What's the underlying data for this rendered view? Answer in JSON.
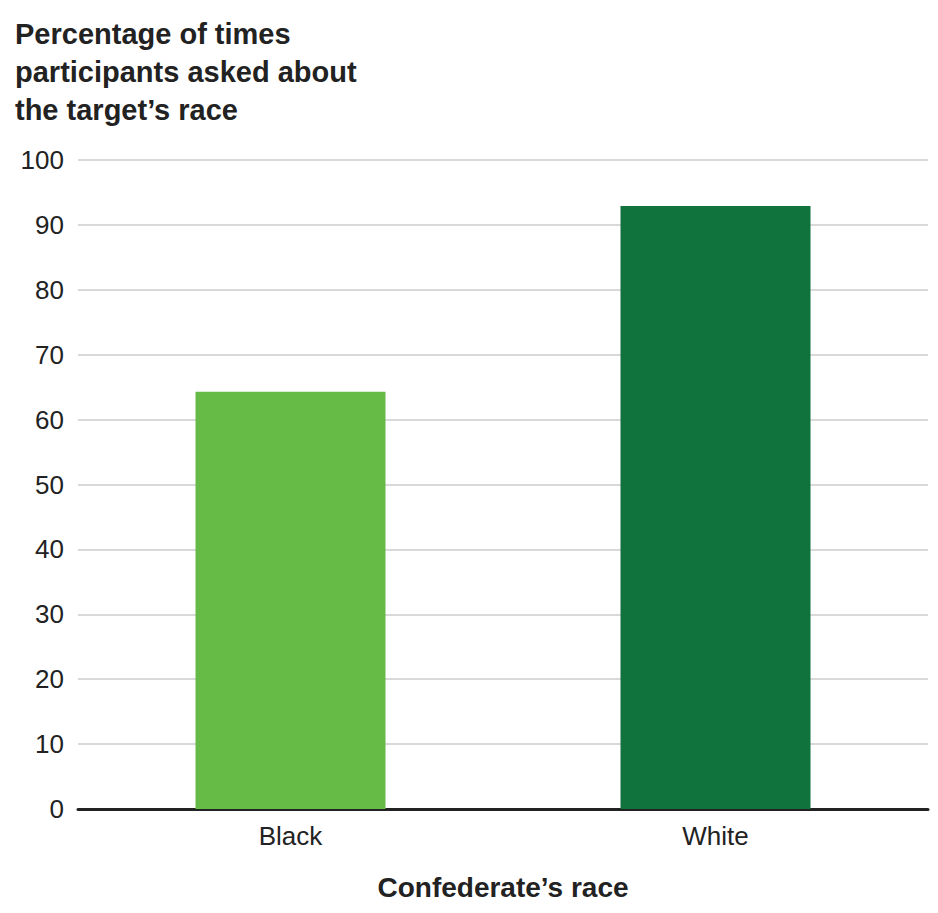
{
  "chart_data": {
    "type": "bar",
    "y_label": "Percentage of times participants asked about the target’s race",
    "x_label": "Confederate’s race",
    "categories": [
      "Black",
      "White"
    ],
    "values": [
      64.3,
      92.9
    ],
    "colors": [
      "#66bb47",
      "#10723c"
    ],
    "ylim": [
      0,
      100
    ],
    "yticks": [
      0,
      10,
      20,
      30,
      40,
      50,
      60,
      70,
      80,
      90,
      100
    ],
    "grid": true
  }
}
